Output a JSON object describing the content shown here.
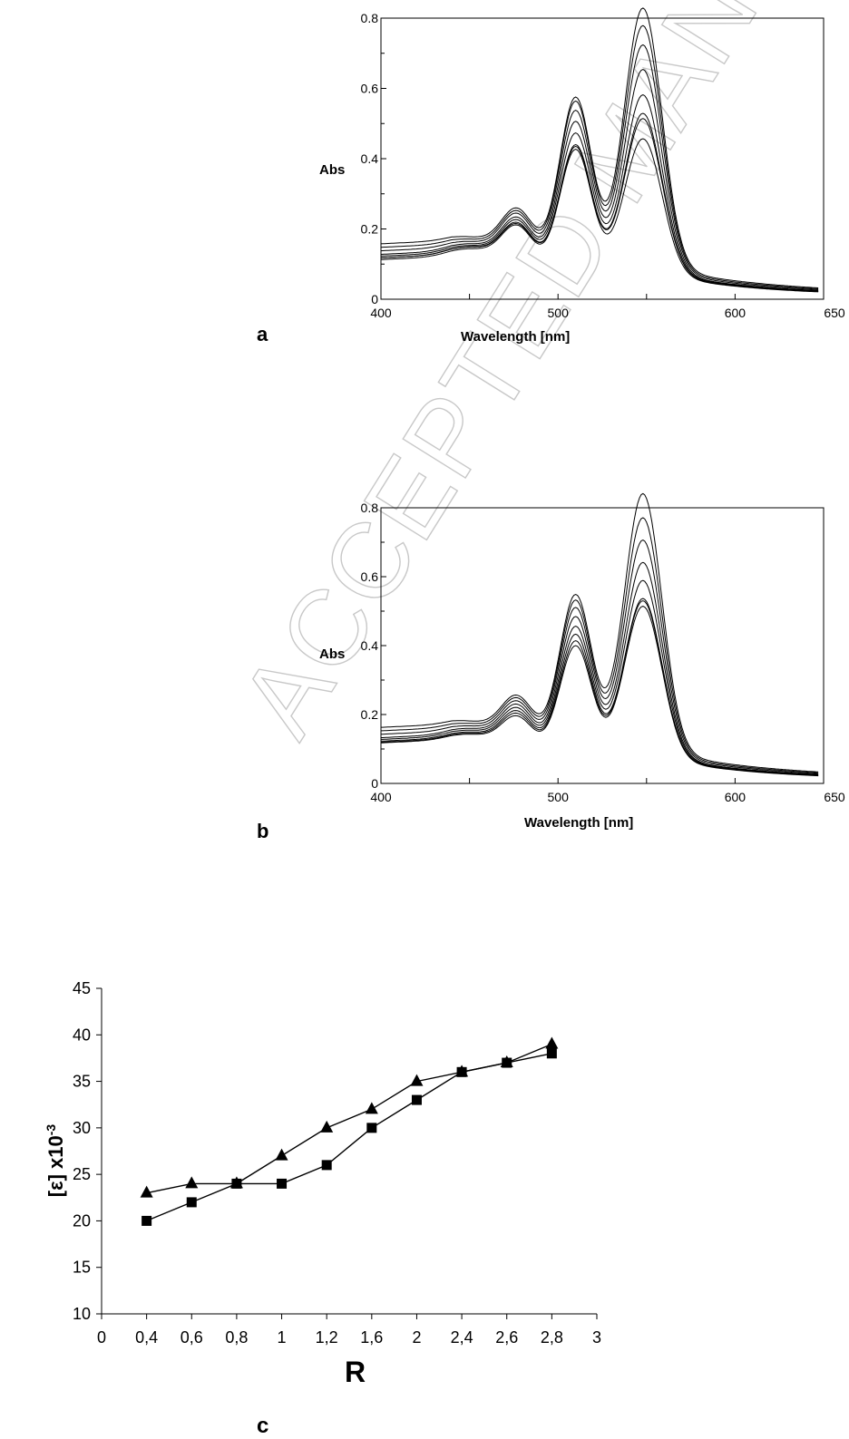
{
  "watermark": "ACCEPTED MANUSCRIPT",
  "chart_data": [
    {
      "id": "a",
      "type": "line",
      "panel_label": "a",
      "xlabel": "Wavelength [nm]",
      "ylabel": "Abs",
      "xlim": [
        400,
        650
      ],
      "ylim": [
        0,
        0.8
      ],
      "x_ticks": [
        400,
        500,
        600,
        650
      ],
      "y_ticks": [
        "0",
        "0.2",
        "0.4",
        "0.6",
        "0.8"
      ],
      "y_tick_values": [
        0,
        0.2,
        0.4,
        0.6,
        0.8
      ],
      "grid": false,
      "spectra": [
        {
          "base": 0.065,
          "p450": 0.125,
          "p475": 0.22,
          "p510": 0.41,
          "p528": 0.3,
          "p548": 0.415
        },
        {
          "base": 0.07,
          "p450": 0.13,
          "p475": 0.225,
          "p510": 0.42,
          "p528": 0.305,
          "p548": 0.47
        },
        {
          "base": 0.07,
          "p450": 0.132,
          "p475": 0.23,
          "p510": 0.425,
          "p528": 0.31,
          "p548": 0.485
        },
        {
          "base": 0.075,
          "p450": 0.135,
          "p475": 0.24,
          "p510": 0.46,
          "p528": 0.318,
          "p548": 0.535
        },
        {
          "base": 0.08,
          "p450": 0.14,
          "p475": 0.25,
          "p510": 0.495,
          "p528": 0.325,
          "p548": 0.605
        },
        {
          "base": 0.09,
          "p450": 0.145,
          "p475": 0.265,
          "p510": 0.53,
          "p528": 0.335,
          "p548": 0.67
        },
        {
          "base": 0.1,
          "p450": 0.15,
          "p475": 0.275,
          "p510": 0.56,
          "p528": 0.34,
          "p548": 0.72
        },
        {
          "base": 0.11,
          "p450": 0.155,
          "p475": 0.285,
          "p510": 0.575,
          "p528": 0.345,
          "p548": 0.765
        }
      ]
    },
    {
      "id": "b",
      "type": "line",
      "panel_label": "b",
      "xlabel": "Wavelength [nm]",
      "ylabel": "Abs",
      "xlim": [
        400,
        650
      ],
      "ylim": [
        0,
        0.8
      ],
      "x_ticks": [
        400,
        500,
        600,
        650
      ],
      "y_ticks": [
        "0",
        "0.2",
        "0.4",
        "0.6",
        "0.8"
      ],
      "y_tick_values": [
        0,
        0.2,
        0.4,
        0.6,
        0.8
      ],
      "grid": false,
      "spectra": [
        {
          "base": 0.07,
          "p450": 0.12,
          "p475": 0.2,
          "p510": 0.385,
          "p528": 0.29,
          "p548": 0.47
        },
        {
          "base": 0.072,
          "p450": 0.124,
          "p475": 0.21,
          "p510": 0.4,
          "p528": 0.298,
          "p548": 0.485
        },
        {
          "base": 0.075,
          "p450": 0.128,
          "p475": 0.22,
          "p510": 0.42,
          "p528": 0.305,
          "p548": 0.49
        },
        {
          "base": 0.08,
          "p450": 0.134,
          "p475": 0.232,
          "p510": 0.445,
          "p528": 0.315,
          "p548": 0.54
        },
        {
          "base": 0.085,
          "p450": 0.14,
          "p475": 0.245,
          "p510": 0.475,
          "p528": 0.325,
          "p548": 0.59
        },
        {
          "base": 0.095,
          "p450": 0.146,
          "p475": 0.258,
          "p510": 0.505,
          "p528": 0.335,
          "p548": 0.65
        },
        {
          "base": 0.105,
          "p450": 0.152,
          "p475": 0.27,
          "p510": 0.53,
          "p528": 0.345,
          "p548": 0.71
        },
        {
          "base": 0.115,
          "p450": 0.158,
          "p475": 0.28,
          "p510": 0.55,
          "p528": 0.35,
          "p548": 0.775
        }
      ]
    },
    {
      "id": "c",
      "type": "line",
      "panel_label": "c",
      "xlabel": "R",
      "ylabel": "[ε] x10",
      "ylabel_exponent": "-3",
      "categories": [
        "0",
        "0,4",
        "0,6",
        "0,8",
        "1",
        "1,2",
        "1,6",
        "2",
        "2,4",
        "2,6",
        "2,8",
        "3"
      ],
      "ylim": [
        10,
        45
      ],
      "y_ticks": [
        10,
        15,
        20,
        25,
        30,
        35,
        40,
        45
      ],
      "grid": false,
      "series": [
        {
          "marker": "triangle",
          "values": [
            null,
            23,
            24,
            24,
            27,
            30,
            32,
            35,
            36,
            37,
            39,
            null
          ]
        },
        {
          "marker": "square",
          "values": [
            null,
            20,
            22,
            24,
            24,
            26,
            30,
            33,
            36,
            37,
            38,
            null
          ]
        }
      ]
    }
  ]
}
